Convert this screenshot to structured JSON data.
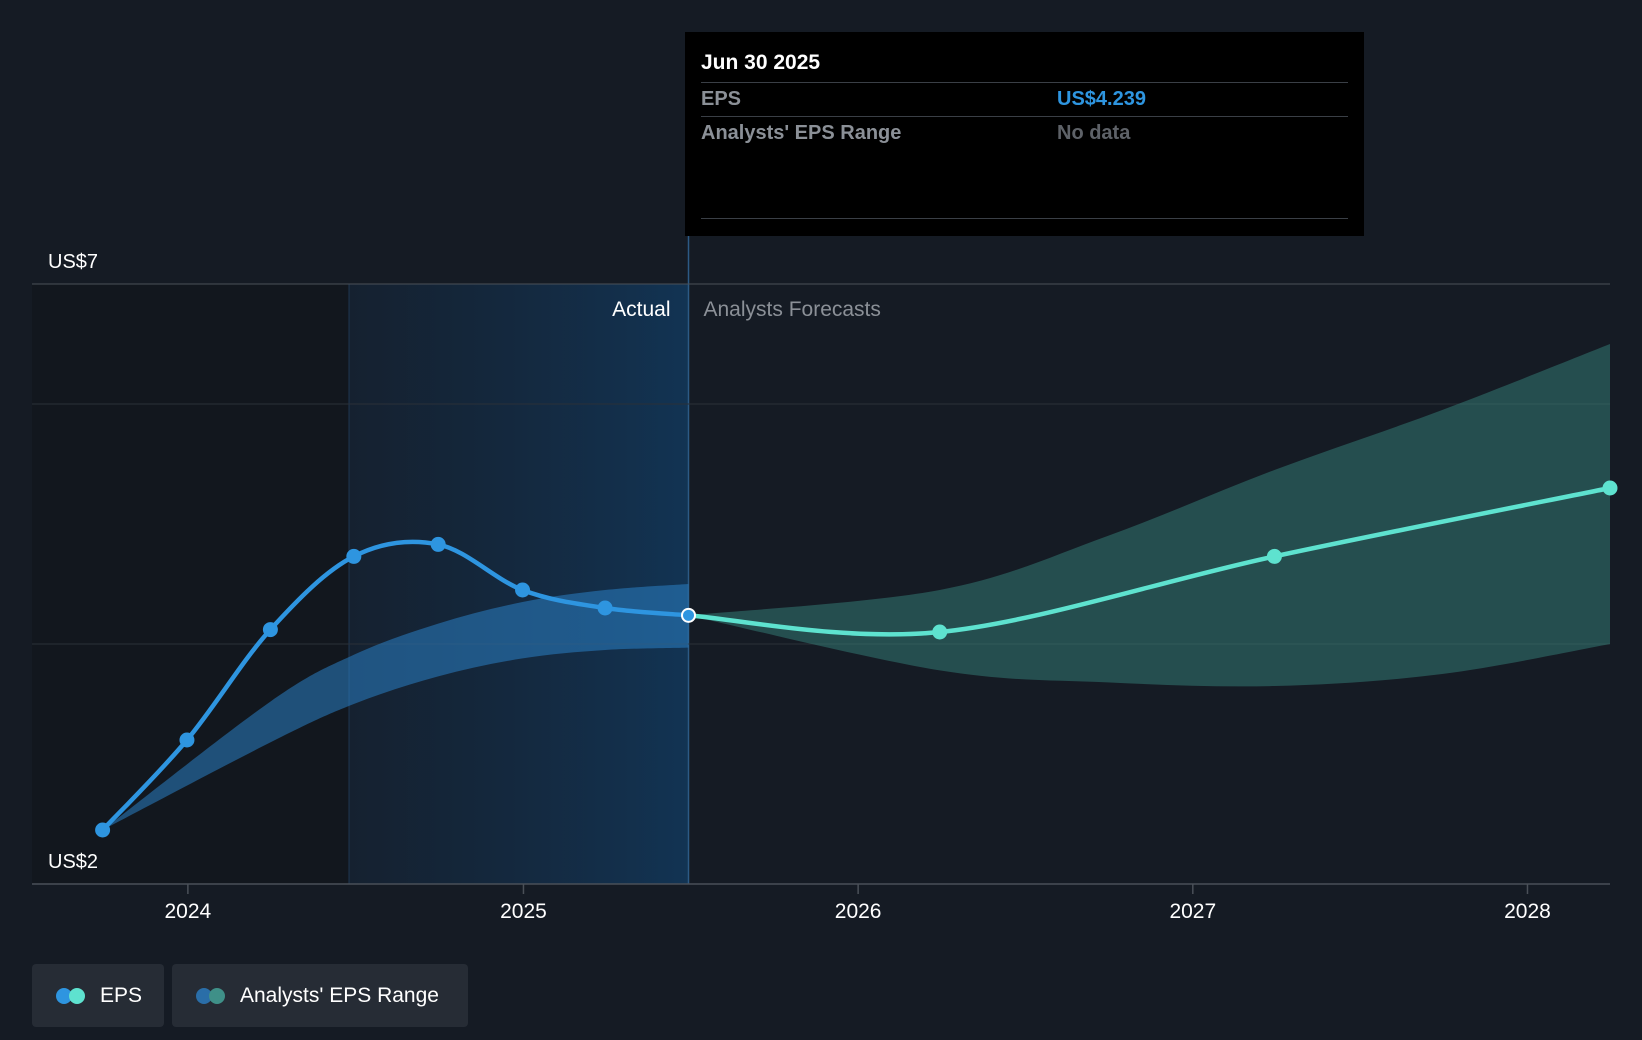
{
  "colors": {
    "background": "#151b24",
    "eps_actual": "#2e95e0",
    "eps_forecast": "#5ee2cf",
    "range_actual": "#2a7fc4",
    "range_forecast": "#3a8f86",
    "grid": "#2a3038",
    "text": "#ffffff",
    "muted_text": "#8b9097"
  },
  "tooltip": {
    "date": "Jun 30 2025",
    "rows": [
      {
        "label": "EPS",
        "value": "US$4.239"
      },
      {
        "label": "Analysts' EPS Range",
        "value": "No data"
      }
    ]
  },
  "legend": [
    {
      "label": "EPS",
      "icon": "eps-legend-icon"
    },
    {
      "label": "Analysts' EPS Range",
      "icon": "range-legend-icon"
    }
  ],
  "chart_data": {
    "type": "line",
    "title": "",
    "xlabel": "",
    "ylabel": "",
    "y_axis_labels": [
      "US$7",
      "US$2"
    ],
    "ylim": [
      2,
      7
    ],
    "x_ticks": [
      "2024",
      "2025",
      "2026",
      "2027",
      "2028"
    ],
    "xlim": [
      "2023-07-15",
      "2028-03-31"
    ],
    "divider_date": "2025-06-30",
    "section_labels": {
      "actual": "Actual",
      "forecast": "Analysts Forecasts"
    },
    "grid": true,
    "legend_position": "bottom-left",
    "series": [
      {
        "name": "EPS",
        "kind": "actual",
        "points": [
          {
            "x": "2023-09-30",
            "y": 2.45
          },
          {
            "x": "2023-12-31",
            "y": 3.2
          },
          {
            "x": "2024-03-31",
            "y": 4.12
          },
          {
            "x": "2024-06-30",
            "y": 4.73
          },
          {
            "x": "2024-09-30",
            "y": 4.83
          },
          {
            "x": "2024-12-31",
            "y": 4.45
          },
          {
            "x": "2025-03-31",
            "y": 4.3
          },
          {
            "x": "2025-06-30",
            "y": 4.239
          }
        ]
      },
      {
        "name": "EPS",
        "kind": "forecast",
        "points": [
          {
            "x": "2025-06-30",
            "y": 4.239
          },
          {
            "x": "2026-03-31",
            "y": 4.1
          },
          {
            "x": "2027-03-31",
            "y": 4.73
          },
          {
            "x": "2028-03-31",
            "y": 5.3
          }
        ]
      }
    ],
    "ranges": [
      {
        "name": "Analysts' EPS Range",
        "kind": "actual",
        "upper": [
          {
            "x": "2023-09-30",
            "y": 2.45
          },
          {
            "x": "2024-03-31",
            "y": 3.52
          },
          {
            "x": "2024-06-30",
            "y": 3.91
          },
          {
            "x": "2024-09-30",
            "y": 4.17
          },
          {
            "x": "2024-12-31",
            "y": 4.35
          },
          {
            "x": "2025-03-31",
            "y": 4.45
          },
          {
            "x": "2025-06-30",
            "y": 4.5
          }
        ],
        "lower": [
          {
            "x": "2023-09-30",
            "y": 2.45
          },
          {
            "x": "2024-03-31",
            "y": 3.18
          },
          {
            "x": "2024-06-30",
            "y": 3.5
          },
          {
            "x": "2024-09-30",
            "y": 3.73
          },
          {
            "x": "2024-12-31",
            "y": 3.88
          },
          {
            "x": "2025-03-31",
            "y": 3.95
          },
          {
            "x": "2025-06-30",
            "y": 3.97
          }
        ]
      },
      {
        "name": "Analysts' EPS Range",
        "kind": "forecast",
        "upper": [
          {
            "x": "2025-06-30",
            "y": 4.239
          },
          {
            "x": "2026-03-31",
            "y": 4.45
          },
          {
            "x": "2026-09-30",
            "y": 4.9
          },
          {
            "x": "2027-03-31",
            "y": 5.45
          },
          {
            "x": "2027-09-30",
            "y": 5.95
          },
          {
            "x": "2028-03-31",
            "y": 6.5
          }
        ],
        "lower": [
          {
            "x": "2025-06-30",
            "y": 4.239
          },
          {
            "x": "2026-03-31",
            "y": 3.78
          },
          {
            "x": "2026-09-30",
            "y": 3.68
          },
          {
            "x": "2027-03-31",
            "y": 3.65
          },
          {
            "x": "2027-09-30",
            "y": 3.75
          },
          {
            "x": "2028-03-31",
            "y": 4.0
          }
        ]
      }
    ]
  }
}
